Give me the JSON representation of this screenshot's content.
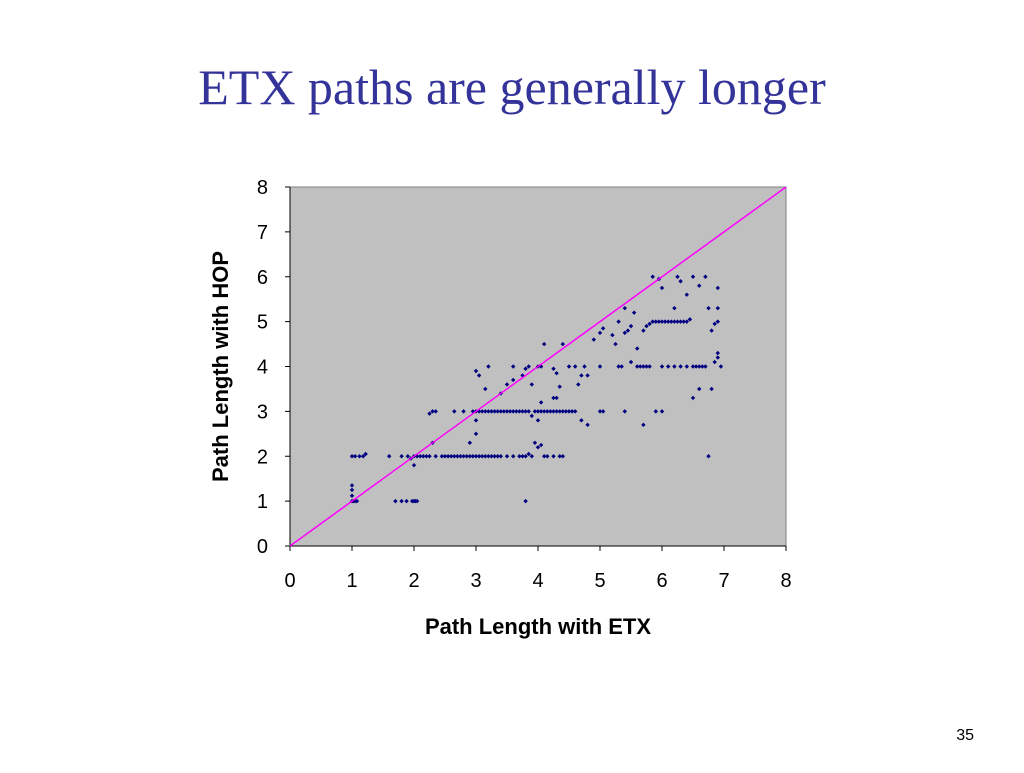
{
  "slide": {
    "title": "ETX paths are generally longer",
    "page_number": "35"
  },
  "colors": {
    "title": "#333399",
    "plot_background": "#c0c0c0",
    "points": "#000080",
    "reference_line": "#ff00ff"
  },
  "chart_data": {
    "type": "scatter",
    "title": "",
    "xlabel": "Path Length with ETX",
    "ylabel": "Path Length with HOP",
    "xlim": [
      0,
      8
    ],
    "ylim": [
      0,
      8
    ],
    "xticks": [
      0,
      1,
      2,
      3,
      4,
      5,
      6,
      7,
      8
    ],
    "yticks": [
      0,
      1,
      2,
      3,
      4,
      5,
      6,
      7,
      8
    ],
    "grid": false,
    "legend": "none",
    "reference_line": {
      "from": [
        0,
        0
      ],
      "to": [
        8,
        8
      ]
    },
    "series": [
      {
        "points": [
          [
            1.0,
            1.0
          ],
          [
            1.02,
            1.0
          ],
          [
            1.05,
            1.0
          ],
          [
            1.08,
            1.0
          ],
          [
            1.0,
            1.12
          ],
          [
            1.0,
            1.25
          ],
          [
            1.0,
            1.35
          ],
          [
            1.0,
            2.0
          ],
          [
            1.05,
            2.0
          ],
          [
            1.12,
            2.0
          ],
          [
            1.18,
            2.0
          ],
          [
            1.22,
            2.05
          ],
          [
            1.6,
            2.0
          ],
          [
            1.7,
            1.0
          ],
          [
            1.8,
            1.0
          ],
          [
            1.88,
            1.0
          ],
          [
            1.97,
            1.0
          ],
          [
            2.0,
            1.0
          ],
          [
            2.02,
            1.0
          ],
          [
            2.05,
            1.0
          ],
          [
            1.8,
            2.0
          ],
          [
            1.9,
            2.0
          ],
          [
            1.95,
            1.95
          ],
          [
            2.0,
            1.8
          ],
          [
            2.0,
            2.0
          ],
          [
            2.05,
            2.0
          ],
          [
            2.1,
            2.0
          ],
          [
            2.15,
            2.0
          ],
          [
            2.2,
            2.0
          ],
          [
            2.25,
            2.0
          ],
          [
            2.3,
            2.3
          ],
          [
            2.25,
            2.95
          ],
          [
            2.3,
            3.0
          ],
          [
            2.35,
            3.0
          ],
          [
            2.35,
            2.0
          ],
          [
            2.45,
            2.0
          ],
          [
            2.5,
            2.0
          ],
          [
            2.55,
            2.0
          ],
          [
            2.6,
            2.0
          ],
          [
            2.65,
            2.0
          ],
          [
            2.7,
            2.0
          ],
          [
            2.75,
            2.0
          ],
          [
            2.8,
            2.0
          ],
          [
            2.85,
            2.0
          ],
          [
            2.9,
            2.0
          ],
          [
            2.95,
            2.0
          ],
          [
            3.0,
            2.0
          ],
          [
            3.05,
            2.0
          ],
          [
            3.1,
            2.0
          ],
          [
            3.15,
            2.0
          ],
          [
            3.2,
            2.0
          ],
          [
            3.25,
            2.0
          ],
          [
            3.3,
            2.0
          ],
          [
            3.35,
            2.0
          ],
          [
            3.4,
            2.0
          ],
          [
            3.5,
            2.0
          ],
          [
            2.65,
            3.0
          ],
          [
            2.8,
            3.0
          ],
          [
            2.9,
            2.3
          ],
          [
            2.95,
            3.0
          ],
          [
            3.0,
            2.5
          ],
          [
            3.0,
            2.8
          ],
          [
            3.0,
            3.0
          ],
          [
            3.0,
            3.9
          ],
          [
            3.05,
            3.8
          ],
          [
            3.05,
            3.0
          ],
          [
            3.1,
            3.0
          ],
          [
            3.15,
            3.0
          ],
          [
            3.2,
            3.0
          ],
          [
            3.25,
            3.0
          ],
          [
            3.3,
            3.0
          ],
          [
            3.35,
            3.0
          ],
          [
            3.4,
            3.0
          ],
          [
            3.45,
            3.0
          ],
          [
            3.5,
            3.0
          ],
          [
            3.55,
            3.0
          ],
          [
            3.6,
            3.0
          ],
          [
            3.65,
            3.0
          ],
          [
            3.7,
            3.0
          ],
          [
            3.75,
            3.0
          ],
          [
            3.8,
            3.0
          ],
          [
            3.2,
            4.0
          ],
          [
            3.15,
            3.5
          ],
          [
            3.4,
            3.4
          ],
          [
            3.5,
            3.6
          ],
          [
            3.6,
            3.7
          ],
          [
            3.6,
            4.0
          ],
          [
            3.75,
            3.8
          ],
          [
            3.8,
            3.95
          ],
          [
            3.85,
            4.0
          ],
          [
            3.9,
            3.6
          ],
          [
            3.6,
            2.0
          ],
          [
            3.7,
            2.0
          ],
          [
            3.75,
            2.0
          ],
          [
            3.8,
            2.0
          ],
          [
            3.85,
            2.05
          ],
          [
            3.9,
            2.0
          ],
          [
            3.95,
            2.3
          ],
          [
            3.8,
            1.0
          ],
          [
            3.85,
            3.0
          ],
          [
            3.9,
            2.9
          ],
          [
            3.95,
            3.0
          ],
          [
            4.0,
            3.0
          ],
          [
            4.05,
            3.0
          ],
          [
            4.1,
            3.0
          ],
          [
            4.15,
            3.0
          ],
          [
            4.2,
            3.0
          ],
          [
            4.25,
            3.0
          ],
          [
            4.3,
            3.0
          ],
          [
            4.35,
            3.0
          ],
          [
            4.4,
            3.0
          ],
          [
            4.45,
            3.0
          ],
          [
            4.5,
            3.0
          ],
          [
            4.55,
            3.0
          ],
          [
            4.6,
            3.0
          ],
          [
            4.0,
            4.0
          ],
          [
            4.05,
            4.0
          ],
          [
            4.1,
            4.5
          ],
          [
            4.05,
            3.2
          ],
          [
            4.0,
            2.8
          ],
          [
            4.0,
            2.2
          ],
          [
            4.05,
            2.25
          ],
          [
            4.1,
            2.0
          ],
          [
            4.15,
            2.0
          ],
          [
            4.25,
            2.0
          ],
          [
            4.35,
            2.0
          ],
          [
            4.4,
            2.0
          ],
          [
            4.25,
            3.3
          ],
          [
            4.3,
            3.3
          ],
          [
            4.25,
            3.95
          ],
          [
            4.3,
            3.85
          ],
          [
            4.35,
            3.55
          ],
          [
            4.4,
            4.5
          ],
          [
            4.5,
            4.0
          ],
          [
            4.6,
            4.0
          ],
          [
            4.65,
            3.6
          ],
          [
            4.7,
            3.8
          ],
          [
            4.75,
            4.0
          ],
          [
            4.8,
            3.8
          ],
          [
            4.7,
            2.8
          ],
          [
            4.8,
            2.7
          ],
          [
            4.9,
            4.6
          ],
          [
            5.0,
            4.0
          ],
          [
            5.0,
            3.0
          ],
          [
            5.05,
            3.0
          ],
          [
            5.0,
            4.75
          ],
          [
            5.05,
            4.85
          ],
          [
            5.2,
            4.7
          ],
          [
            5.25,
            4.5
          ],
          [
            5.3,
            4.0
          ],
          [
            5.35,
            4.0
          ],
          [
            5.4,
            4.75
          ],
          [
            5.45,
            4.8
          ],
          [
            5.5,
            4.9
          ],
          [
            5.3,
            5.0
          ],
          [
            5.4,
            5.3
          ],
          [
            5.55,
            5.2
          ],
          [
            5.6,
            4.4
          ],
          [
            5.5,
            4.1
          ],
          [
            5.6,
            4.0
          ],
          [
            5.65,
            4.0
          ],
          [
            5.7,
            4.0
          ],
          [
            5.75,
            4.0
          ],
          [
            5.8,
            4.0
          ],
          [
            5.4,
            3.0
          ],
          [
            5.7,
            2.7
          ],
          [
            5.7,
            4.8
          ],
          [
            5.75,
            4.9
          ],
          [
            5.8,
            4.95
          ],
          [
            5.85,
            5.0
          ],
          [
            5.9,
            5.0
          ],
          [
            5.95,
            5.0
          ],
          [
            6.0,
            5.0
          ],
          [
            6.05,
            5.0
          ],
          [
            6.1,
            5.0
          ],
          [
            6.15,
            5.0
          ],
          [
            6.2,
            5.0
          ],
          [
            6.25,
            5.0
          ],
          [
            6.3,
            5.0
          ],
          [
            6.35,
            5.0
          ],
          [
            6.4,
            5.0
          ],
          [
            6.45,
            5.05
          ],
          [
            5.85,
            6.0
          ],
          [
            5.95,
            5.95
          ],
          [
            6.0,
            5.75
          ],
          [
            6.2,
            5.3
          ],
          [
            6.25,
            6.0
          ],
          [
            6.3,
            5.9
          ],
          [
            6.4,
            5.6
          ],
          [
            6.0,
            4.0
          ],
          [
            6.1,
            4.0
          ],
          [
            6.2,
            4.0
          ],
          [
            6.3,
            4.0
          ],
          [
            6.4,
            4.0
          ],
          [
            6.5,
            4.0
          ],
          [
            6.55,
            4.0
          ],
          [
            6.6,
            4.0
          ],
          [
            6.65,
            4.0
          ],
          [
            6.7,
            4.0
          ],
          [
            5.9,
            3.0
          ],
          [
            6.0,
            3.0
          ],
          [
            6.5,
            3.3
          ],
          [
            6.6,
            3.5
          ],
          [
            6.5,
            6.0
          ],
          [
            6.6,
            5.8
          ],
          [
            6.7,
            6.0
          ],
          [
            6.75,
            5.3
          ],
          [
            6.8,
            4.8
          ],
          [
            6.85,
            4.95
          ],
          [
            6.9,
            5.0
          ],
          [
            6.9,
            5.3
          ],
          [
            6.9,
            5.75
          ],
          [
            6.85,
            4.1
          ],
          [
            6.9,
            4.2
          ],
          [
            6.9,
            4.3
          ],
          [
            6.95,
            4.0
          ],
          [
            6.8,
            3.5
          ],
          [
            6.75,
            2.0
          ]
        ]
      }
    ]
  }
}
